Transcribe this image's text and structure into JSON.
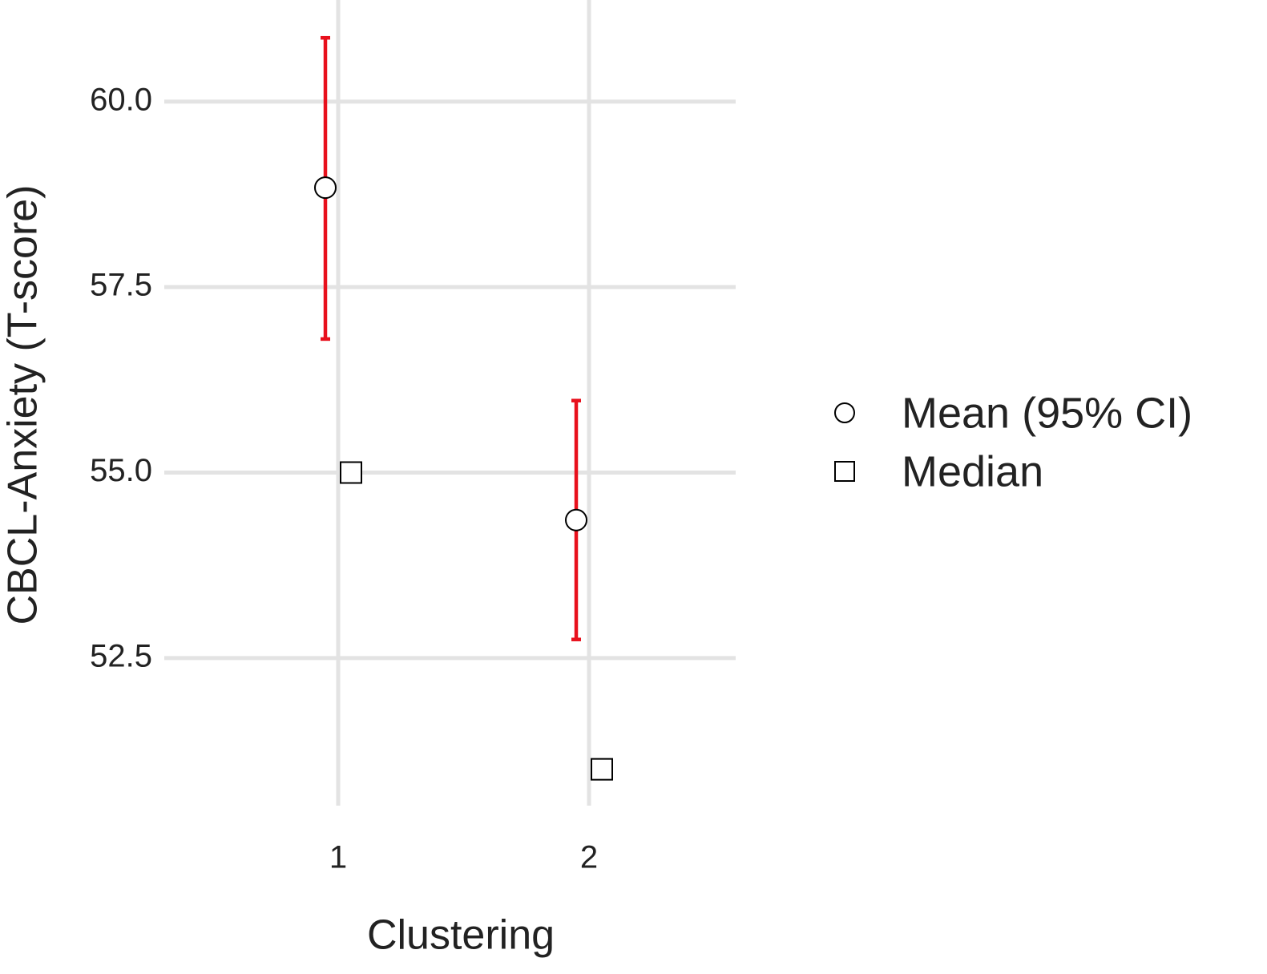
{
  "chart_data": {
    "type": "pointrange",
    "x_label": "Clustering",
    "y_label": "CBCL-Anxiety  (T-score)",
    "categories": [
      "1",
      "2"
    ],
    "series": [
      {
        "name": "Mean (95% CI)",
        "shape": "circle",
        "color": "#000000",
        "values": [
          58.84,
          54.36
        ],
        "lower": [
          56.8,
          52.75
        ],
        "upper": [
          60.86,
          55.97
        ],
        "errorbar_color": "#e8101c"
      },
      {
        "name": "Median",
        "shape": "square",
        "color": "#000000",
        "values": [
          55.0,
          51.0
        ]
      }
    ],
    "ylim": [
      50.51,
      61.37
    ],
    "yticks": [
      {
        "value": 52.5,
        "label": "52.5"
      },
      {
        "value": 55,
        "label": "55.0"
      },
      {
        "value": 57.5,
        "label": "57.5"
      },
      {
        "value": 60,
        "label": "60.0"
      }
    ],
    "grid": true,
    "legend": "right"
  }
}
